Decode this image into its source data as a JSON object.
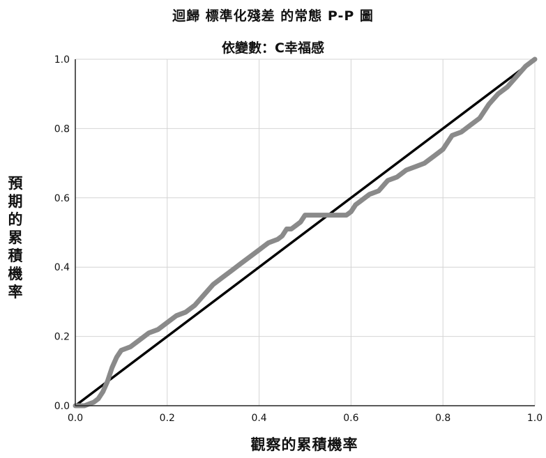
{
  "chart_data": {
    "type": "line",
    "title": "迴歸 標準化殘差 的常態 P-P 圖",
    "subtitle": "依變數：C幸福感",
    "xlabel": "觀察的累積機率",
    "ylabel": "預期的累積機率",
    "xlim": [
      0.0,
      1.0
    ],
    "ylim": [
      0.0,
      1.0
    ],
    "x_ticks": [
      "0.0",
      "0.2",
      "0.4",
      "0.6",
      "0.8",
      "1.0"
    ],
    "y_ticks": [
      "0.0",
      "0.2",
      "0.4",
      "0.6",
      "0.8",
      "1.0"
    ],
    "grid": true,
    "series": [
      {
        "role": "observed",
        "color": "#8a8a8a",
        "x": [
          0.0,
          0.02,
          0.04,
          0.05,
          0.06,
          0.07,
          0.08,
          0.09,
          0.1,
          0.12,
          0.14,
          0.16,
          0.18,
          0.2,
          0.22,
          0.24,
          0.26,
          0.28,
          0.3,
          0.32,
          0.34,
          0.36,
          0.38,
          0.4,
          0.42,
          0.44,
          0.45,
          0.46,
          0.47,
          0.48,
          0.49,
          0.5,
          0.52,
          0.54,
          0.56,
          0.58,
          0.59,
          0.6,
          0.61,
          0.62,
          0.64,
          0.66,
          0.68,
          0.7,
          0.72,
          0.74,
          0.76,
          0.78,
          0.8,
          0.82,
          0.84,
          0.86,
          0.88,
          0.9,
          0.92,
          0.94,
          0.96,
          0.98,
          1.0
        ],
        "y": [
          0.0,
          0.0,
          0.01,
          0.02,
          0.04,
          0.07,
          0.11,
          0.14,
          0.16,
          0.17,
          0.19,
          0.21,
          0.22,
          0.24,
          0.26,
          0.27,
          0.29,
          0.32,
          0.35,
          0.37,
          0.39,
          0.41,
          0.43,
          0.45,
          0.47,
          0.48,
          0.49,
          0.51,
          0.51,
          0.52,
          0.53,
          0.55,
          0.55,
          0.55,
          0.55,
          0.55,
          0.55,
          0.56,
          0.58,
          0.59,
          0.61,
          0.62,
          0.65,
          0.66,
          0.68,
          0.69,
          0.7,
          0.72,
          0.74,
          0.78,
          0.79,
          0.81,
          0.83,
          0.87,
          0.9,
          0.92,
          0.95,
          0.98,
          1.0
        ]
      },
      {
        "role": "reference",
        "color": "#000000",
        "x": [
          0.0,
          1.0
        ],
        "y": [
          0.0,
          1.0
        ]
      }
    ]
  }
}
